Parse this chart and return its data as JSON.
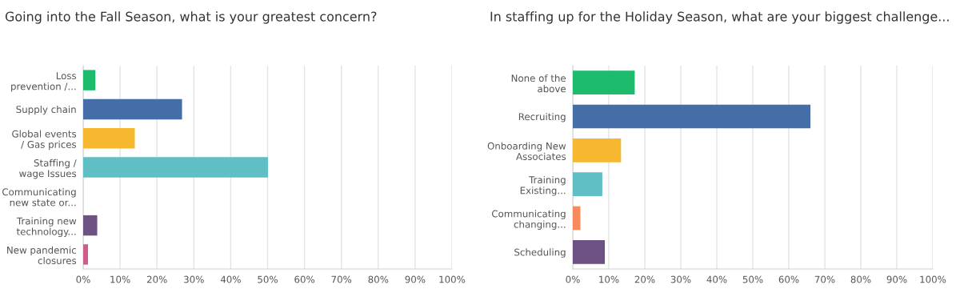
{
  "chart_data": [
    {
      "type": "bar",
      "orientation": "horizontal",
      "title": "Going into the Fall Season, what is your greatest concern?",
      "categories": [
        "Loss\nprevention /...",
        "Supply chain",
        "Global events\n/ Gas prices",
        "Staffing /\nwage Issues",
        "Communicating\nnew state or...",
        "Training new\ntechnology...",
        "New pandemic\nclosures"
      ],
      "values": [
        3.3,
        26.8,
        14.0,
        50.1,
        0,
        3.8,
        1.3
      ],
      "colors": [
        "#1dbb6c",
        "#456ea8",
        "#f6b82f",
        "#5fbfc4",
        "#f68a5c",
        "#6d5182",
        "#cc5e8f"
      ],
      "xlim": [
        0,
        100
      ],
      "xticks": [
        {
          "value": 0,
          "label": "0%"
        },
        {
          "value": 10,
          "label": "10%"
        },
        {
          "value": 20,
          "label": "20%"
        },
        {
          "value": 30,
          "label": "30%"
        },
        {
          "value": 40,
          "label": "40%"
        },
        {
          "value": 50,
          "label": "50%"
        },
        {
          "value": 60,
          "label": "60%"
        },
        {
          "value": 70,
          "label": "70%"
        },
        {
          "value": 80,
          "label": "80%"
        },
        {
          "value": 90,
          "label": "90%"
        },
        {
          "value": 100,
          "label": "100%"
        }
      ],
      "grid": "x"
    },
    {
      "type": "bar",
      "orientation": "horizontal",
      "title": "In staffing up for the Holiday Season, what are your biggest challenge...",
      "categories": [
        "None of the\nabove",
        "Recruiting",
        "Onboarding New\nAssociates",
        "Training\nExisting...",
        "Communicating\nchanging...",
        "Scheduling"
      ],
      "values": [
        17.2,
        66.0,
        13.4,
        8.2,
        2.1,
        8.9
      ],
      "colors": [
        "#1dbb6c",
        "#456ea8",
        "#f6b82f",
        "#5fbfc4",
        "#f68a5c",
        "#6d5182"
      ],
      "xlim": [
        0,
        100
      ],
      "xticks": [
        {
          "value": 0,
          "label": "0%"
        },
        {
          "value": 10,
          "label": "10%"
        },
        {
          "value": 20,
          "label": "20%"
        },
        {
          "value": 30,
          "label": "30%"
        },
        {
          "value": 40,
          "label": "40%"
        },
        {
          "value": 50,
          "label": "50%"
        },
        {
          "value": 60,
          "label": "60%"
        },
        {
          "value": 70,
          "label": "70%"
        },
        {
          "value": 80,
          "label": "80%"
        },
        {
          "value": 90,
          "label": "90%"
        },
        {
          "value": 100,
          "label": "100%"
        }
      ],
      "grid": "x"
    }
  ]
}
